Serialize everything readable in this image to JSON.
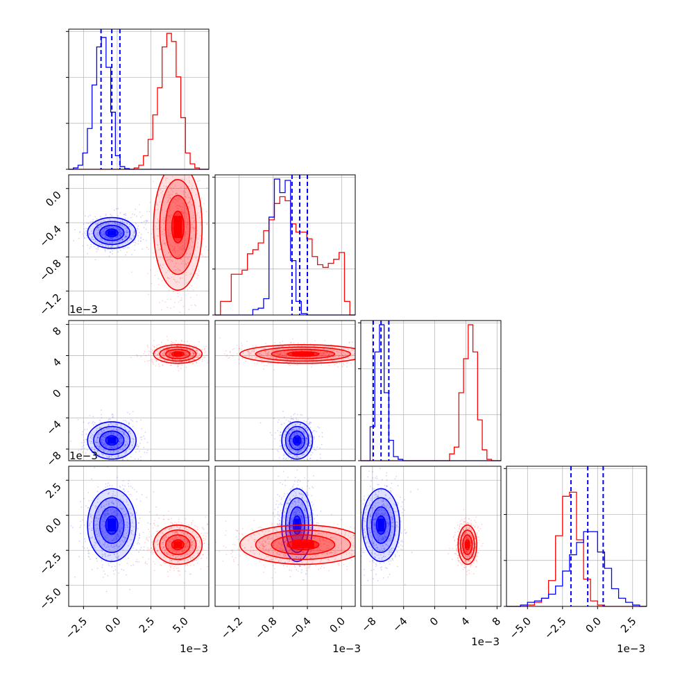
{
  "chart_data": {
    "type": "corner",
    "colors": {
      "series_a": "#0000ff",
      "series_b": "#ff0000",
      "grid": "#b0b0b0",
      "axes": "#000000"
    },
    "series": [
      {
        "color": "#0000ff",
        "mean": [
          -0.0004,
          -0.00052,
          -0.0069,
          -0.0007
        ],
        "std": [
          0.0009,
          9e-05,
          0.0012,
          0.0013
        ],
        "quantiles": [
          [
            -0.0012,
            -0.0004,
            0.0002
          ],
          [
            -0.00058,
            -0.00049,
            -0.0004
          ],
          [
            -0.0079,
            -0.0069,
            -0.0059
          ],
          [
            -0.0019,
            -0.0007,
            0.0004
          ]
        ]
      },
      {
        "color": "#ff0000",
        "mean": [
          0.0045,
          -0.00045,
          0.0042,
          -0.0021
        ],
        "std": [
          0.0009,
          0.00037,
          0.0006,
          0.0007
        ]
      }
    ],
    "diagonal_histograms": [
      {
        "dim": 0,
        "range": [
          -0.0036,
          0.0068
        ],
        "series_a": [
          0,
          0.01,
          0.03,
          0.12,
          0.3,
          0.62,
          0.9,
          0.97,
          0.75,
          0.42,
          0.1,
          0.02,
          0.005,
          0,
          0,
          0,
          0,
          0,
          0,
          0,
          0,
          0,
          0,
          0,
          0,
          0,
          0,
          0,
          0,
          0
        ],
        "series_b": [
          0,
          0,
          0,
          0,
          0,
          0,
          0,
          0,
          0,
          0,
          0,
          0,
          0,
          0,
          0.01,
          0.03,
          0.1,
          0.22,
          0.4,
          0.6,
          0.9,
          1.0,
          0.94,
          0.68,
          0.38,
          0.12,
          0.04,
          0.01,
          0,
          0
        ]
      },
      {
        "dim": 1,
        "range": [
          -0.00148,
          0.00016
        ],
        "series_a": [
          0,
          0,
          0,
          0,
          0,
          0,
          0,
          0.04,
          0.05,
          0.12,
          0.72,
          1.0,
          0.9,
          0.99,
          0.4,
          0.1,
          0.01,
          0,
          0,
          0,
          0,
          0,
          0,
          0,
          0,
          0
        ],
        "series_b": [
          0,
          0.1,
          0.1,
          0.3,
          0.3,
          0.33,
          0.45,
          0.48,
          0.53,
          0.62,
          0.7,
          0.82,
          0.87,
          0.84,
          0.67,
          0.61,
          0.61,
          0.56,
          0.43,
          0.37,
          0.35,
          0.38,
          0.41,
          0.46,
          0.1,
          0
        ]
      },
      {
        "dim": 2,
        "range": [
          -0.0095,
          0.0085
        ],
        "series_a": [
          0,
          0,
          0.25,
          0.8,
          1.0,
          0.5,
          0.15,
          0.03,
          0.01,
          0,
          0,
          0,
          0,
          0,
          0,
          0,
          0,
          0,
          0,
          0,
          0,
          0,
          0,
          0,
          0,
          0,
          0,
          0,
          0,
          0
        ],
        "series_b": [
          0,
          0,
          0,
          0,
          0,
          0,
          0,
          0,
          0,
          0,
          0,
          0,
          0,
          0,
          0,
          0,
          0,
          0,
          0,
          0.05,
          0.1,
          0.5,
          0.75,
          1.0,
          0.8,
          0.3,
          0.08,
          0.01,
          0,
          0
        ]
      },
      {
        "dim": 3,
        "range": [
          -0.0065,
          0.0035
        ],
        "series_a": [
          0,
          0,
          0.01,
          0.03,
          0.04,
          0.06,
          0.09,
          0.15,
          0.26,
          0.38,
          0.47,
          0.55,
          0.55,
          0.4,
          0.28,
          0.13,
          0.06,
          0.03,
          0.01,
          0
        ],
        "series_b": [
          0,
          0,
          0,
          0.01,
          0.03,
          0.06,
          0.19,
          0.52,
          0.81,
          0.84,
          0.49,
          0.2,
          0.04,
          0.01,
          0,
          0,
          0,
          0,
          0,
          0
        ]
      }
    ],
    "axes": [
      {
        "dim": 0,
        "range": [
          -0.0036,
          0.0068
        ],
        "ticks": [
          -2.5,
          0.0,
          2.5,
          5.0
        ],
        "tick_labels": [
          "−2.5",
          "0.0",
          "2.5",
          "5.0"
        ],
        "scale_label": "1e−3"
      },
      {
        "dim": 1,
        "range": [
          -0.00148,
          0.00016
        ],
        "ticks": [
          -1.2,
          -0.8,
          -0.4,
          0.0
        ],
        "tick_labels": [
          "−1.2",
          "−0.8",
          "−0.4",
          "0.0"
        ],
        "scale_label": "1e−3"
      },
      {
        "dim": 2,
        "range": [
          -0.0095,
          0.0085
        ],
        "ticks": [
          -8,
          -4,
          0,
          4,
          8
        ],
        "tick_labels": [
          "−8",
          "−4",
          "0",
          "4",
          "8"
        ],
        "scale_label": "1e−3"
      },
      {
        "dim": 3,
        "range": [
          -0.0065,
          0.0035
        ],
        "ticks": [
          -5.0,
          -2.5,
          0.0,
          2.5
        ],
        "tick_labels": [
          "−5.0",
          "−2.5",
          "0.0",
          "2.5"
        ],
        "scale_label": "1e−3"
      }
    ],
    "grid": true,
    "scale_labels": [
      "1e−3",
      "1e−3",
      "1e−3",
      "1e−3",
      "1e−3",
      "1e−3"
    ]
  }
}
